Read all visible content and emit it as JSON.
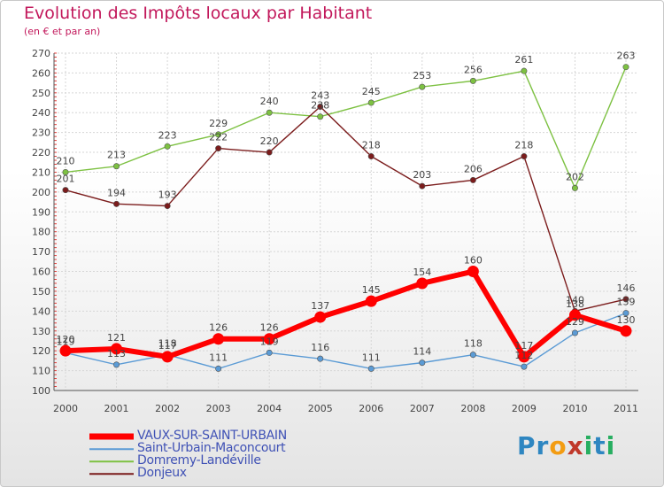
{
  "header": {
    "title": "Evolution des Impôts locaux par Habitant",
    "subtitle": "(en € et par an)"
  },
  "logo": {
    "text": "Proxiti",
    "letters": [
      {
        "char": "P",
        "color": "#2e86c1"
      },
      {
        "char": "r",
        "color": "#2e86c1"
      },
      {
        "char": "o",
        "color": "#f39c12"
      },
      {
        "char": "x",
        "color": "#c0392b"
      },
      {
        "char": "i",
        "color": "#27ae60"
      },
      {
        "char": "t",
        "color": "#2e86c1"
      },
      {
        "char": "i",
        "color": "#27ae60"
      }
    ]
  },
  "chart_data": {
    "type": "line",
    "title": "Evolution des Impôts locaux par Habitant",
    "subtitle": "(en € et par an)",
    "xlabel": "",
    "ylabel": "",
    "x": [
      "2000",
      "2001",
      "2002",
      "2003",
      "2004",
      "2005",
      "2006",
      "2007",
      "2008",
      "2009",
      "2010",
      "2011"
    ],
    "ylim": [
      100,
      270
    ],
    "yticks": [
      100,
      110,
      120,
      130,
      140,
      150,
      160,
      170,
      180,
      190,
      200,
      210,
      220,
      230,
      240,
      250,
      260,
      270
    ],
    "grid": true,
    "legend_position": "bottom-left",
    "series": [
      {
        "name": "VAUX-SUR-SAINT-URBAIN",
        "color": "#ff0000",
        "values": [
          120,
          121,
          117,
          126,
          126,
          137,
          145,
          154,
          160,
          117,
          138,
          130
        ],
        "labels": [
          "120",
          "121",
          "117",
          "126",
          "126",
          "137",
          "145",
          "154",
          "160",
          "117",
          "138",
          "130"
        ]
      },
      {
        "name": "Saint-Urbain-Maconcourt",
        "color": "#5b9bd5",
        "values": [
          119,
          113,
          118,
          111,
          119,
          116,
          111,
          114,
          118,
          112,
          129,
          139
        ],
        "labels": [
          "119",
          "113",
          "118",
          "111",
          "119",
          "116",
          "111",
          "114",
          "118",
          "112",
          "129",
          "139"
        ]
      },
      {
        "name": "Domremy-Landéville",
        "color": "#7dc142",
        "values": [
          210,
          213,
          223,
          229,
          240,
          238,
          245,
          253,
          256,
          261,
          202,
          263
        ],
        "labels": [
          "210",
          "213",
          "223",
          "229",
          "240",
          "238",
          "245",
          "253",
          "256",
          "261",
          "202",
          "263"
        ]
      },
      {
        "name": "Donjeux",
        "color": "#7b1c1c",
        "values": [
          201,
          194,
          193,
          222,
          220,
          243,
          218,
          203,
          206,
          218,
          140,
          146
        ],
        "labels": [
          "201",
          "194",
          "193",
          "222",
          "220",
          "243",
          "218",
          "203",
          "206",
          "218",
          "140",
          "146"
        ]
      }
    ]
  }
}
